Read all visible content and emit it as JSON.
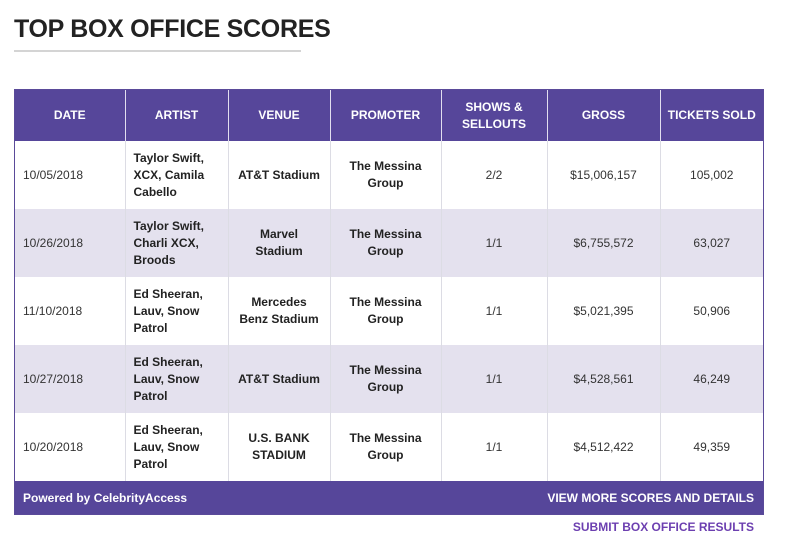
{
  "page": {
    "title": "TOP BOX OFFICE SCORES"
  },
  "table": {
    "headers": {
      "date": "DATE",
      "artist": "ARTIST",
      "venue": "VENUE",
      "promoter": "PROMOTER",
      "shows": "SHOWS & SELLOUTS",
      "gross": "GROSS",
      "tickets": "TICKETS SOLD"
    },
    "rows": [
      {
        "date": "10/05/2018",
        "artist": "Taylor Swift, XCX, Camila Cabello",
        "venue": "AT&T Stadium",
        "promoter": "The Messina Group",
        "shows": "2/2",
        "gross": "$15,006,157",
        "tickets": "105,002"
      },
      {
        "date": "10/26/2018",
        "artist": "Taylor Swift, Charli XCX, Broods",
        "venue": "Marvel Stadium",
        "promoter": "The Messina Group",
        "shows": "1/1",
        "gross": "$6,755,572",
        "tickets": "63,027"
      },
      {
        "date": "11/10/2018",
        "artist": "Ed Sheeran, Lauv, Snow Patrol",
        "venue": "Mercedes Benz Stadium",
        "promoter": "The Messina Group",
        "shows": "1/1",
        "gross": "$5,021,395",
        "tickets": "50,906"
      },
      {
        "date": "10/27/2018",
        "artist": "Ed Sheeran, Lauv, Snow Patrol",
        "venue": "AT&T Stadium",
        "promoter": "The Messina Group",
        "shows": "1/1",
        "gross": "$4,528,561",
        "tickets": "46,249"
      },
      {
        "date": "10/20/2018",
        "artist": "Ed Sheeran, Lauv, Snow Patrol",
        "venue": "U.S. BANK STADIUM",
        "promoter": "The Messina Group",
        "shows": "1/1",
        "gross": "$4,512,422",
        "tickets": "49,359"
      }
    ]
  },
  "footer": {
    "powered_by": "Powered by CelebrityAccess",
    "view_more": "VIEW MORE SCORES AND DETAILS",
    "submit": "SUBMIT BOX OFFICE RESULTS"
  },
  "colors": {
    "header_bg": "#56469a",
    "stripe_bg": "#e4e1ee",
    "submit_link": "#6c3fb0"
  }
}
